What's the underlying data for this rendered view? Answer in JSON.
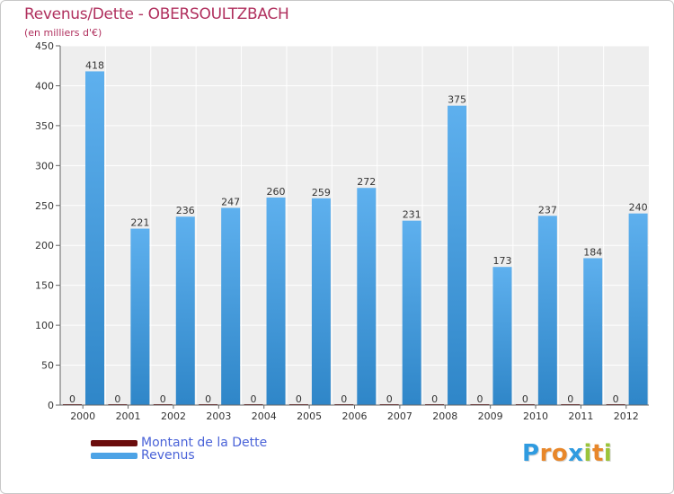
{
  "chart_data": {
    "type": "bar",
    "title": "Revenus/Dette - OBERSOULTZBACH",
    "subtitle": "(en milliers d'€)",
    "categories": [
      "2000",
      "2001",
      "2002",
      "2003",
      "2004",
      "2005",
      "2006",
      "2007",
      "2008",
      "2009",
      "2010",
      "2011",
      "2012"
    ],
    "series": [
      {
        "name": "Montant de la Dette",
        "color": "#6b0d0d",
        "values": [
          0,
          0,
          0,
          0,
          0,
          0,
          0,
          0,
          0,
          0,
          0,
          0,
          0
        ]
      },
      {
        "name": "Revenus",
        "color": "#4da3e6",
        "values": [
          418,
          221,
          236,
          247,
          260,
          259,
          272,
          231,
          375,
          173,
          237,
          184,
          240
        ]
      }
    ],
    "xlabel": "",
    "ylabel": "",
    "ylim": [
      0,
      450
    ],
    "yticks": [
      0,
      50,
      100,
      150,
      200,
      250,
      300,
      350,
      400,
      450
    ],
    "grid": true,
    "legend_position": "bottom-left"
  },
  "logo": {
    "letters": [
      "P",
      "r",
      "o",
      "x",
      "i",
      "t",
      "i"
    ],
    "colors": [
      "#2f9be0",
      "#e8872a",
      "#e8872a",
      "#2f9be0",
      "#9bc43a",
      "#e8872a",
      "#9bc43a"
    ]
  }
}
